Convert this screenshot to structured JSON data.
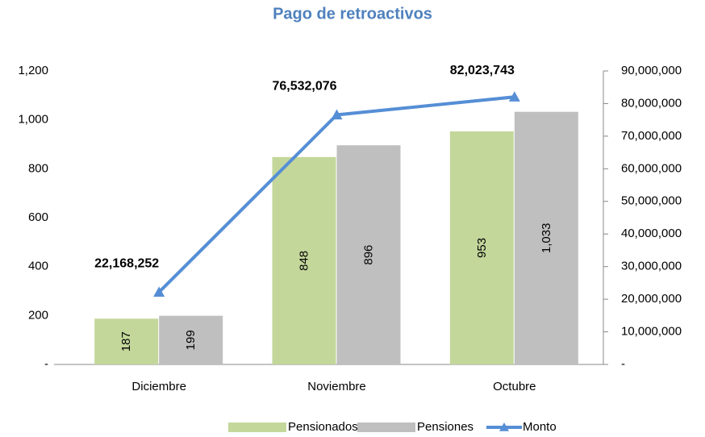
{
  "chart_data": {
    "type": "bar",
    "title": "Pago de retroactivos",
    "categories": [
      "Diciembre",
      "Noviembre",
      "Octubre"
    ],
    "series": [
      {
        "name": "Pensionados",
        "color": "#c4d79b",
        "values": [
          187,
          848,
          953
        ]
      },
      {
        "name": "Pensiones",
        "color": "#bfbfbf",
        "values": [
          199,
          896,
          1033
        ],
        "value_labels": [
          "199",
          "896",
          "1,033"
        ]
      },
      {
        "name": "Monto",
        "type": "line",
        "axis": "y2",
        "color": "#558ed5",
        "values": [
          22168252,
          76532076,
          82023743
        ],
        "value_labels": [
          "22,168,252",
          "76,532,076",
          "82,023,743"
        ]
      }
    ],
    "ylim": [
      0,
      1200
    ],
    "yticks": [
      {
        "value": 0,
        "label": "-"
      },
      200,
      400,
      600,
      800,
      {
        "value": 1000,
        "label": "1,000"
      },
      {
        "value": 1200,
        "label": "1,200"
      }
    ],
    "y2lim": [
      0,
      90000000
    ],
    "y2ticks": [
      {
        "value": 0,
        "label": "-"
      },
      {
        "value": 10000000,
        "label": "10,000,000"
      },
      {
        "value": 20000000,
        "label": "20,000,000"
      },
      {
        "value": 30000000,
        "label": "30,000,000"
      },
      {
        "value": 40000000,
        "label": "40,000,000"
      },
      {
        "value": 50000000,
        "label": "50,000,000"
      },
      {
        "value": 60000000,
        "label": "60,000,000"
      },
      {
        "value": 70000000,
        "label": "70,000,000"
      },
      {
        "value": 80000000,
        "label": "80,000,000"
      },
      {
        "value": 90000000,
        "label": "90,000,000"
      }
    ],
    "legend": "bottom"
  }
}
